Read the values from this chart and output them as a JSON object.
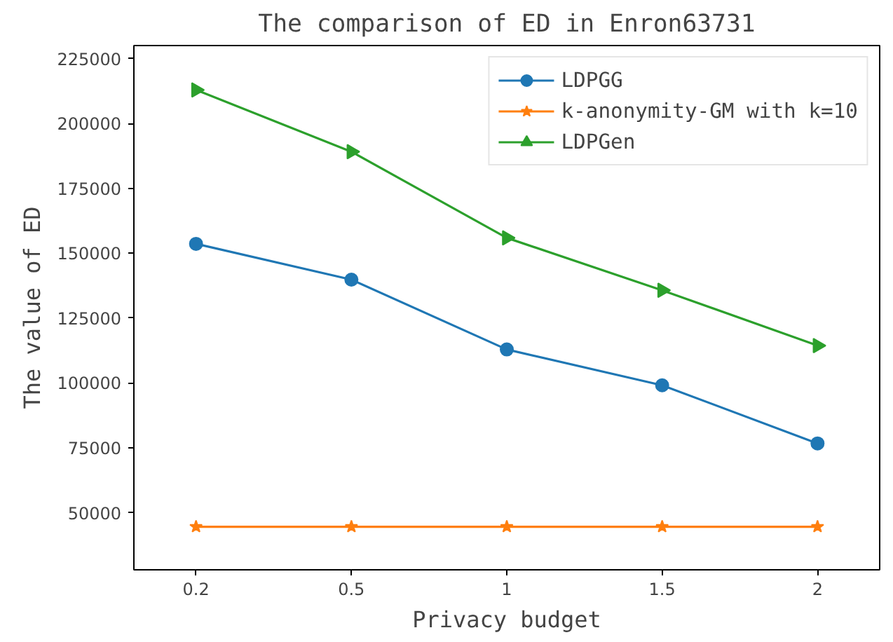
{
  "chart_data": {
    "type": "line",
    "title": "The comparison of ED in Enron63731",
    "xlabel": "Privacy budget",
    "ylabel": "The value of ED",
    "categories": [
      "0.2",
      "0.5",
      "1",
      "1.5",
      "2"
    ],
    "series": [
      {
        "name": "LDPGG",
        "color": "#1f77b4",
        "marker": "circle",
        "values": [
          153600,
          139800,
          112900,
          99100,
          76700
        ]
      },
      {
        "name": "k-anonymity-GM with k=10",
        "color": "#ff7f0e",
        "marker": "star",
        "values": [
          44600,
          44600,
          44600,
          44600,
          44600
        ]
      },
      {
        "name": "LDPGen",
        "color": "#2ca02c",
        "marker": "triangle",
        "values": [
          212900,
          189100,
          155900,
          135700,
          114400
        ]
      }
    ],
    "ylim": [
      28000,
      230000
    ],
    "yticks": [
      50000,
      75000,
      100000,
      125000,
      150000,
      175000,
      200000,
      225000
    ],
    "grid": false,
    "legend": "top right",
    "line_style": "solid"
  }
}
